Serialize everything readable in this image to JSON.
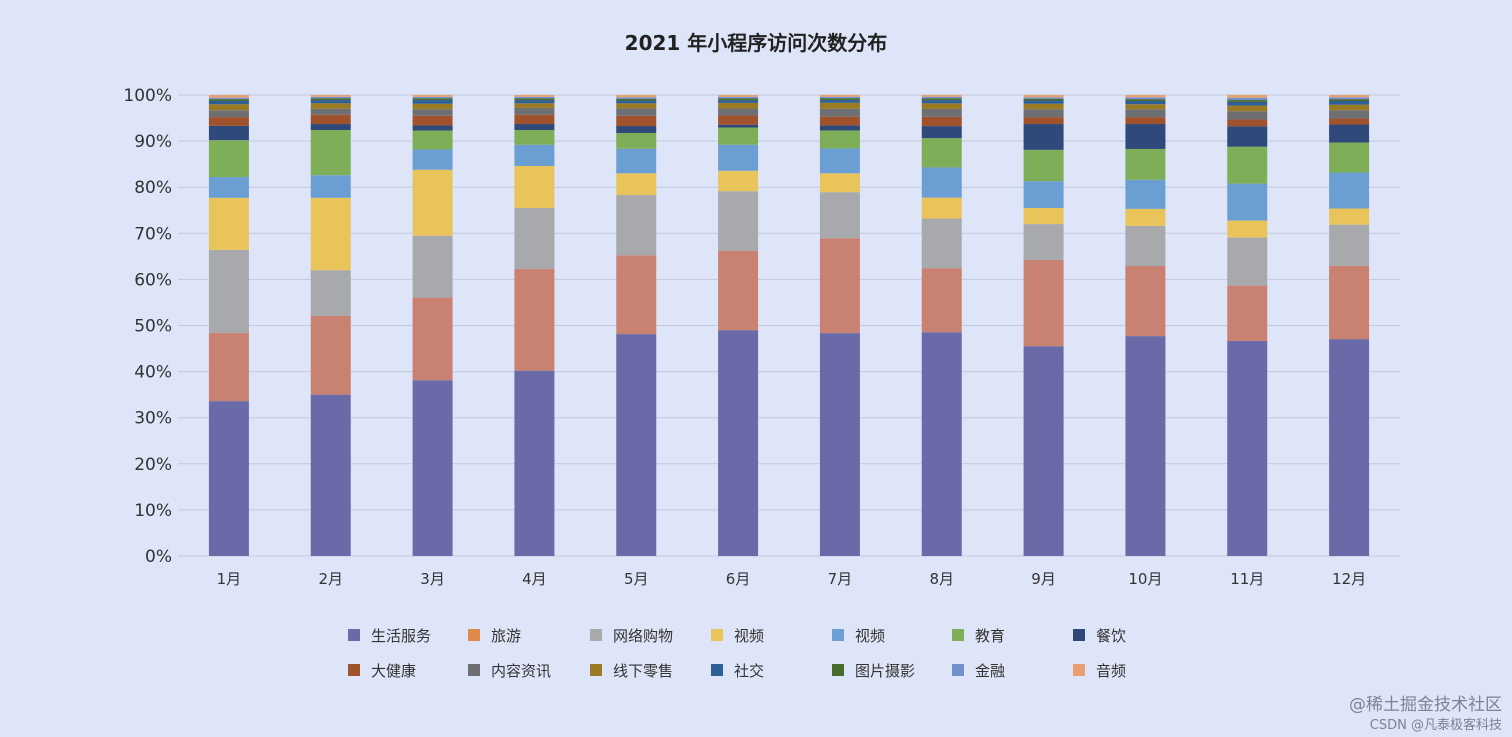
{
  "chart_data": {
    "type": "bar",
    "stacked": "percent",
    "title": "2021 年小程序访问次数分布",
    "categories": [
      "1月",
      "2月",
      "3月",
      "4月",
      "5月",
      "6月",
      "7月",
      "8月",
      "9月",
      "10月",
      "11月",
      "12月"
    ],
    "ylim": [
      0,
      100
    ],
    "yticks": [
      "0%",
      "10%",
      "20%",
      "30%",
      "40%",
      "50%",
      "60%",
      "70%",
      "80%",
      "90%",
      "100%"
    ],
    "grid": true,
    "legend": "bottom",
    "series": [
      {
        "name": "生活服务",
        "color": "#6b6aa8",
        "legend_color": "#6b6aa8",
        "values": [
          33.6,
          35.0,
          38.1,
          40.2,
          47.9,
          48.6,
          48.4,
          48.2,
          45.5,
          47.7,
          46.6,
          47.0
        ]
      },
      {
        "name": "旅游",
        "color": "#c98172",
        "legend_color": "#e0874a",
        "values": [
          14.8,
          17.1,
          17.9,
          22.1,
          17.0,
          17.1,
          20.6,
          13.8,
          18.7,
          15.2,
          12.0,
          15.9
        ]
      },
      {
        "name": "网络购物",
        "color": "#a8a9ad",
        "legend_color": "#a8a9ad",
        "values": [
          18.0,
          9.9,
          13.4,
          13.2,
          13.0,
          12.8,
          10.0,
          10.7,
          7.8,
          8.7,
          10.4,
          8.9
        ]
      },
      {
        "name": "视频",
        "color": "#e8c45a",
        "legend_color": "#e8c45a",
        "values": [
          11.3,
          15.7,
          14.3,
          9.1,
          4.7,
          4.4,
          4.1,
          4.5,
          3.5,
          3.7,
          3.7,
          3.5
        ]
      },
      {
        "name": "视频",
        "color": "#6b9fd4",
        "legend_color": "#6b9fd4",
        "values": [
          4.5,
          4.9,
          4.4,
          4.6,
          5.3,
          5.6,
          5.4,
          6.5,
          5.8,
          6.3,
          8.0,
          7.8
        ]
      },
      {
        "name": "教育",
        "color": "#7fae58",
        "legend_color": "#7fae58",
        "values": [
          8.0,
          9.8,
          4.1,
          3.2,
          3.4,
          3.7,
          3.9,
          6.3,
          6.8,
          6.7,
          8.0,
          6.5
        ]
      },
      {
        "name": "餐饮",
        "color": "#2f4a7a",
        "legend_color": "#2f4a7a",
        "values": [
          3.1,
          1.3,
          1.1,
          1.3,
          1.5,
          0.6,
          1.1,
          2.6,
          5.6,
          5.4,
          4.4,
          3.9
        ]
      },
      {
        "name": "大健康",
        "color": "#a0522d",
        "legend_color": "#a0522d",
        "values": [
          1.9,
          2.0,
          2.1,
          2.0,
          2.2,
          2.0,
          1.9,
          2.0,
          1.5,
          1.5,
          1.5,
          1.3
        ]
      },
      {
        "name": "内容资讯",
        "color": "#6e6f72",
        "legend_color": "#6e6f72",
        "values": [
          1.5,
          1.3,
          1.4,
          1.5,
          1.6,
          1.5,
          1.7,
          1.7,
          1.7,
          1.7,
          1.8,
          1.8
        ]
      },
      {
        "name": "线下零售",
        "color": "#9a7a22",
        "legend_color": "#9a7a22",
        "values": [
          1.3,
          1.2,
          1.2,
          1.0,
          1.1,
          1.2,
          1.3,
          1.2,
          1.2,
          1.1,
          1.2,
          1.2
        ]
      },
      {
        "name": "社交",
        "color": "#2e5f95",
        "legend_color": "#2e5f95",
        "values": [
          0.7,
          0.7,
          0.8,
          0.7,
          0.6,
          0.6,
          0.6,
          0.7,
          0.7,
          0.7,
          0.8,
          0.8
        ]
      },
      {
        "name": "图片摄影",
        "color": "#4a6b2e",
        "legend_color": "#4a6b2e",
        "values": [
          0.4,
          0.4,
          0.4,
          0.4,
          0.4,
          0.4,
          0.4,
          0.4,
          0.4,
          0.4,
          0.4,
          0.4
        ]
      },
      {
        "name": "金融",
        "color": "#7090cc",
        "legend_color": "#7090cc",
        "values": [
          0.3,
          0.3,
          0.3,
          0.3,
          0.3,
          0.3,
          0.3,
          0.3,
          0.3,
          0.4,
          0.5,
          0.4
        ]
      },
      {
        "name": "音频",
        "color": "#e8a070",
        "legend_color": "#e8a070",
        "values": [
          0.6,
          0.4,
          0.4,
          0.4,
          0.5,
          0.4,
          0.4,
          0.4,
          0.5,
          0.5,
          0.6,
          0.5
        ]
      }
    ]
  },
  "watermarks": {
    "juejin": "@稀土掘金技术社区",
    "csdn": "CSDN @凡泰极客科技"
  }
}
